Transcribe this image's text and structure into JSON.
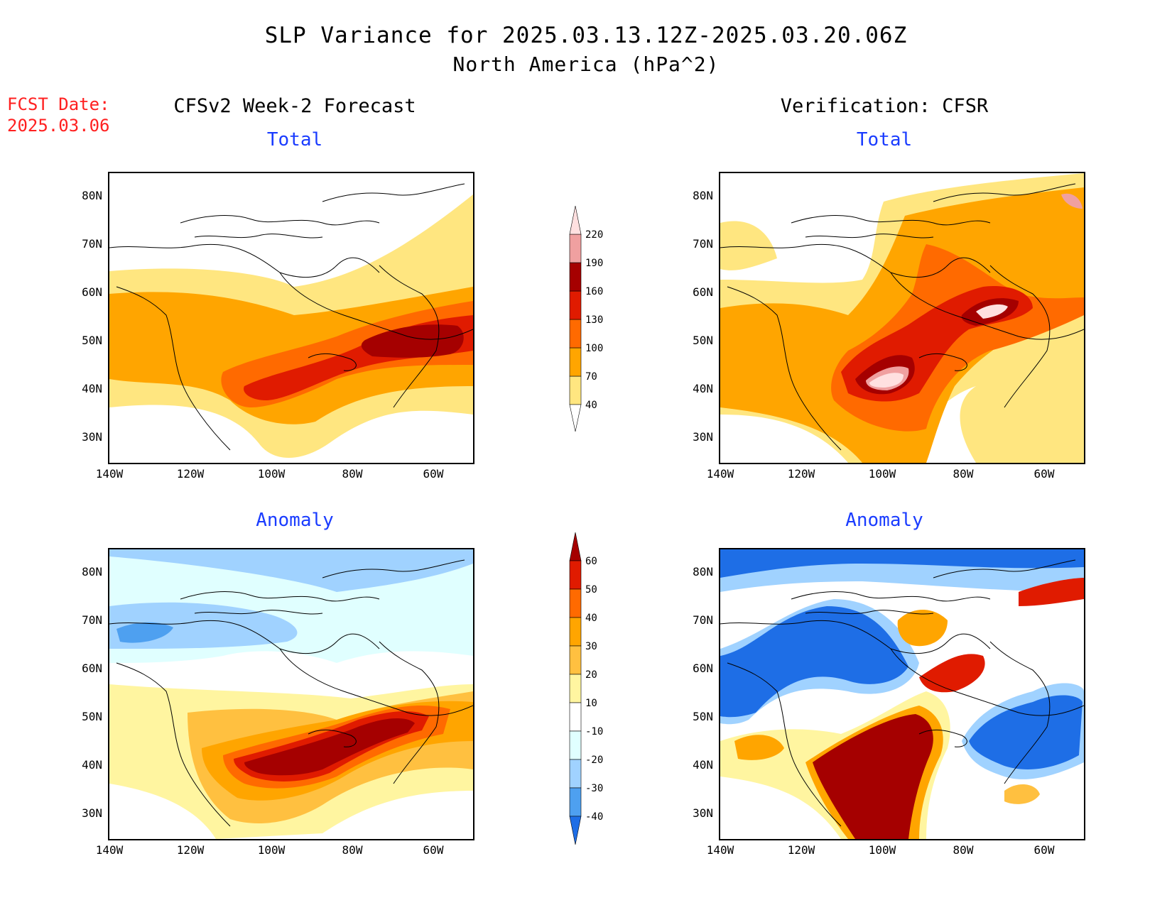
{
  "title": "SLP Variance for 2025.03.13.12Z-2025.03.20.06Z",
  "subtitle": "North America (hPa^2)",
  "fcst_label": "FCST Date:",
  "fcst_date": "2025.03.06",
  "left_column": "CFSv2 Week-2 Forecast",
  "right_column": "Verification: CFSR",
  "panels": {
    "forecast_total": "Total",
    "verif_total": "Total",
    "forecast_anomaly": "Anomaly",
    "verif_anomaly": "Anomaly"
  },
  "lat_labels": [
    "80N",
    "70N",
    "60N",
    "50N",
    "40N",
    "30N"
  ],
  "lon_labels": [
    "140W",
    "120W",
    "100W",
    "80W",
    "60W"
  ],
  "total_colorbar": {
    "levels": [
      "40",
      "70",
      "100",
      "130",
      "160",
      "190",
      "220"
    ],
    "colors": [
      "#ffe680",
      "#ffa500",
      "#ff6a00",
      "#e01b00",
      "#a50000",
      "#f0a0a0",
      "#ffe0e0"
    ]
  },
  "anomaly_colorbar": {
    "levels": [
      "60",
      "50",
      "40",
      "30",
      "20",
      "10",
      "-10",
      "-20",
      "-30",
      "-40"
    ],
    "colors": [
      "#a50000",
      "#e01b00",
      "#ff6a00",
      "#ffa500",
      "#ffc040",
      "#fff5a0",
      "#ffffff",
      "#e0ffff",
      "#a0d2ff",
      "#4ea0f0",
      "#1e6ee6"
    ]
  },
  "colors": {
    "panel_title": "#1a3cff",
    "fcst_date": "#ff2020"
  }
}
